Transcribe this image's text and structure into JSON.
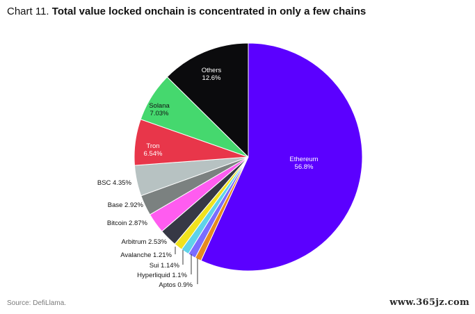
{
  "header": {
    "prefix": "Chart 11.",
    "title": "Total value locked onchain is concentrated in only a few chains"
  },
  "source": "Source: DefiLlama.",
  "watermark": "www.365jz.com",
  "chart_data": {
    "type": "pie",
    "title": "Total value locked onchain is concentrated in only a few chains",
    "start_angle_deg": 0,
    "direction": "clockwise",
    "slices": [
      {
        "name": "Ethereum",
        "value": 56.8,
        "label": "56.8%",
        "color": "#5b00ff",
        "label_mode": "inside",
        "text_color": "#ffffff"
      },
      {
        "name": "Aptos",
        "value": 0.9,
        "label": "0.9%",
        "color": "#e58a1f",
        "label_mode": "outside"
      },
      {
        "name": "Hyperliquid",
        "value": 1.1,
        "label": "1.1%",
        "color": "#7b6cff",
        "label_mode": "outside"
      },
      {
        "name": "Sui",
        "value": 1.14,
        "label": "1.14%",
        "color": "#5fd3ea",
        "label_mode": "outside"
      },
      {
        "name": "Avalanche",
        "value": 1.21,
        "label": "1.21%",
        "color": "#f0e21e",
        "label_mode": "outside"
      },
      {
        "name": "Arbitrum",
        "value": 2.53,
        "label": "2.53%",
        "color": "#363845",
        "label_mode": "outside"
      },
      {
        "name": "Bitcoin",
        "value": 2.87,
        "label": "2.87%",
        "color": "#ff5cf0",
        "label_mode": "outside"
      },
      {
        "name": "Base",
        "value": 2.92,
        "label": "2.92%",
        "color": "#7b8180",
        "label_mode": "outside"
      },
      {
        "name": "BSC",
        "value": 4.35,
        "label": "4.35%",
        "color": "#b7c2c2",
        "label_mode": "outside"
      },
      {
        "name": "Tron",
        "value": 6.54,
        "label": "6.54%",
        "color": "#e8364a",
        "label_mode": "inside",
        "text_color": "#ffffff"
      },
      {
        "name": "Solana",
        "value": 7.03,
        "label": "7.03%",
        "color": "#45d86e",
        "label_mode": "inside",
        "text_color": "#111111"
      },
      {
        "name": "Others",
        "value": 12.6,
        "label": "12.6%",
        "color": "#0b0b0d",
        "label_mode": "inside",
        "text_color": "#ffffff"
      }
    ]
  }
}
